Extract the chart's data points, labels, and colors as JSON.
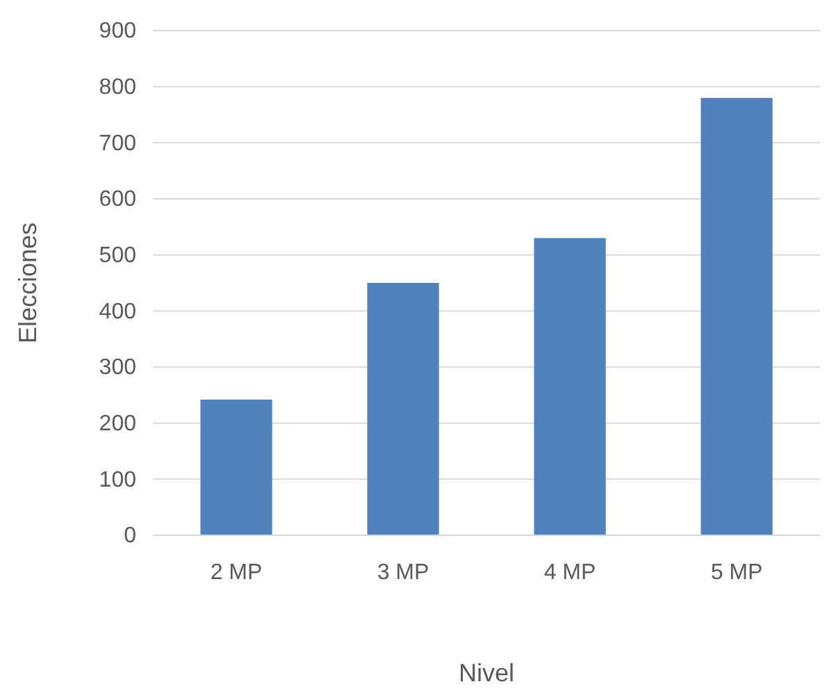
{
  "chart_data": {
    "type": "bar",
    "categories": [
      "2 MP",
      "3 MP",
      "4 MP",
      "5 MP"
    ],
    "values": [
      242,
      450,
      530,
      780
    ],
    "color": "#4f81bd",
    "xlabel": "Nivel",
    "ylabel": "Elecciones",
    "ylim": [
      0,
      900
    ],
    "yticks": [
      0,
      100,
      200,
      300,
      400,
      500,
      600,
      700,
      800,
      900
    ],
    "grid": "y"
  }
}
